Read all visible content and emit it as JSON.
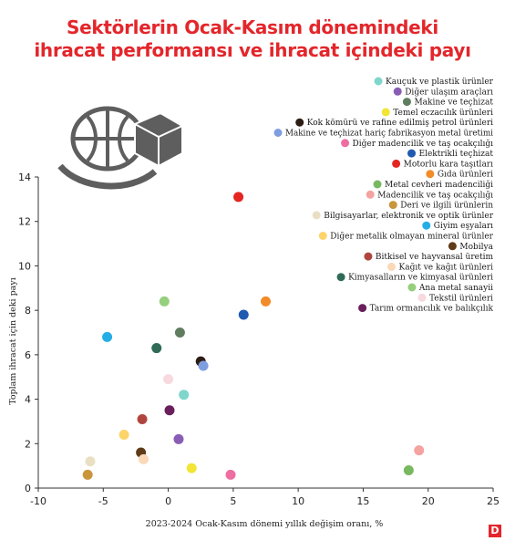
{
  "chart_data": {
    "type": "scatter",
    "title_lines": [
      "Sektörlerin Ocak-Kasım dönemindeki",
      "ihracat performansı ve ihracat içindeki payı"
    ],
    "xlabel": "2023-2024 Ocak-Kasım dönemi yıllık değişim oranı, %",
    "ylabel": "Toplam ihracat için deki payı",
    "xlim": [
      -10,
      25
    ],
    "ylim": [
      0,
      14
    ],
    "xticks": [
      "-10",
      "-5",
      "0",
      "5",
      "10",
      "15",
      "20",
      "25"
    ],
    "yticks": [
      "0",
      "2",
      "4",
      "6",
      "8",
      "10",
      "12",
      "14"
    ],
    "grid": false,
    "legend_position": "top-right",
    "series": [
      {
        "name": "Kauçuk ve plastik ürünler",
        "color": "#7fd6cc",
        "x": 1.2,
        "y": 4.2
      },
      {
        "name": "Diğer ulaşım araçları",
        "color": "#8a5db5",
        "x": 0.8,
        "y": 2.2
      },
      {
        "name": "Makine ve teçhizat",
        "color": "#607e5f",
        "x": 0.9,
        "y": 7.0
      },
      {
        "name": "Temel eczacılık ürünleri",
        "color": "#f2e535",
        "x": 1.8,
        "y": 0.9
      },
      {
        "name": "Kok kömürü ve rafine edilmiş petrol ürünleri",
        "color": "#2c1d14",
        "x": 2.5,
        "y": 5.7
      },
      {
        "name": "Makine ve teçhizat hariç fabrikasyon metal üretimi",
        "color": "#7f9ee0",
        "x": 2.7,
        "y": 5.5
      },
      {
        "name": "Diğer madencilik ve taş ocakçılığı",
        "color": "#ef6ea1",
        "x": 4.8,
        "y": 0.6
      },
      {
        "name": "Elektrikli teçhizat",
        "color": "#205bb0",
        "x": 5.8,
        "y": 7.8
      },
      {
        "name": "Motorlu kara taşıtları",
        "color": "#e52521",
        "x": 5.4,
        "y": 13.1
      },
      {
        "name": "Gıda ürünleri",
        "color": "#f28c28",
        "x": 7.5,
        "y": 8.4
      },
      {
        "name": "Metal cevheri madenciliği",
        "color": "#78b860",
        "x": 18.5,
        "y": 0.8
      },
      {
        "name": "Madencilik ve taş ocakçılığı",
        "color": "#f4a3a0",
        "x": 19.3,
        "y": 1.7
      },
      {
        "name": "Deri ve ilgili ürünlerin",
        "color": "#c9963c",
        "x": -6.2,
        "y": 0.6
      },
      {
        "name": "Bilgisayarlar, elektronik ve optik ürünler",
        "color": "#e9e0c3",
        "x": -6.0,
        "y": 1.2
      },
      {
        "name": "Giyim eşyaları",
        "color": "#25aee6",
        "x": -4.7,
        "y": 6.8
      },
      {
        "name": "Diğer metalik olmayan mineral ürünler",
        "color": "#fcd46a",
        "x": -3.4,
        "y": 2.4
      },
      {
        "name": "Mobilya",
        "color": "#5f3b18",
        "x": -2.1,
        "y": 1.6
      },
      {
        "name": "Bitkisel ve hayvansal üretim",
        "color": "#b04540",
        "x": -2.0,
        "y": 3.1
      },
      {
        "name": "Kağıt ve kağıt ürünleri",
        "color": "#fad8b8",
        "x": -1.9,
        "y": 1.3
      },
      {
        "name": "Kimyasalların ve kimyasal ürünleri",
        "color": "#2f6b57",
        "x": -0.9,
        "y": 6.3
      },
      {
        "name": "Ana metal sanayii",
        "color": "#96d07e",
        "x": -0.3,
        "y": 8.4
      },
      {
        "name": "Tekstil ürünleri",
        "color": "#f7d9df",
        "x": 0.0,
        "y": 4.9
      },
      {
        "name": "Tarım ormancılık ve balıkçılık",
        "color": "#6a1f5c",
        "x": 0.1,
        "y": 3.5
      }
    ]
  },
  "badge": "D"
}
